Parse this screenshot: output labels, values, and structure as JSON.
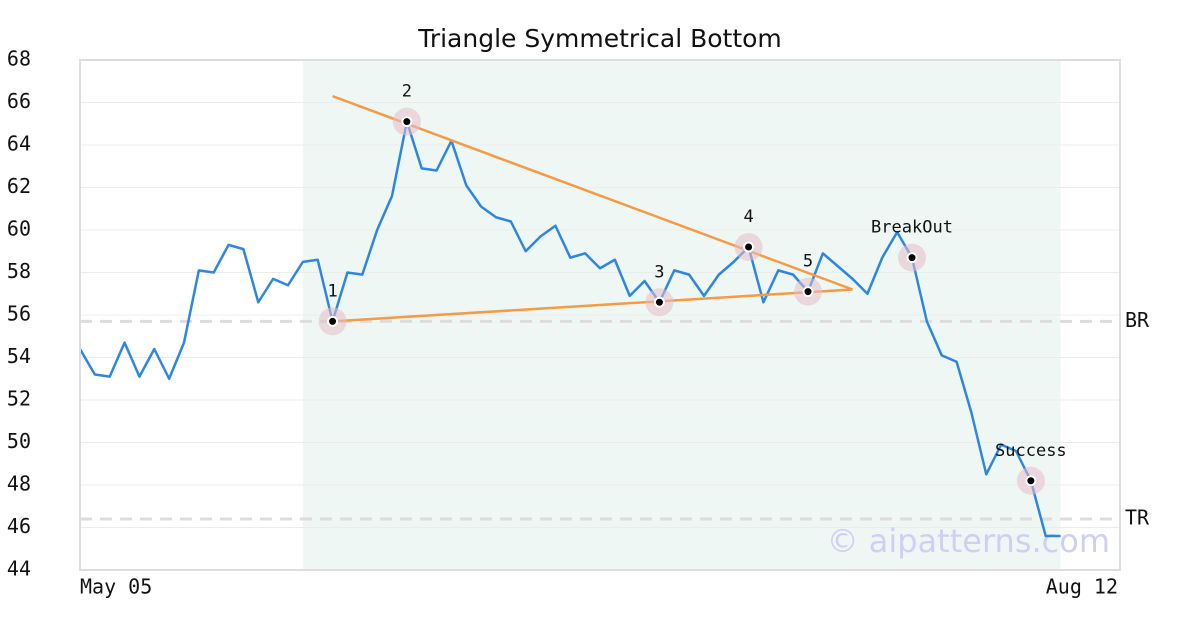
{
  "chart_data": {
    "type": "line",
    "title": "Triangle Symmetrical Bottom",
    "x": [
      0,
      1,
      2,
      3,
      4,
      5,
      6,
      7,
      8,
      9,
      10,
      11,
      12,
      13,
      14,
      15,
      16,
      17,
      18,
      19,
      20,
      21,
      22,
      23,
      24,
      25,
      26,
      27,
      28,
      29,
      30,
      31,
      32,
      33,
      34,
      35,
      36,
      37,
      38,
      39,
      40,
      41,
      42,
      43,
      44,
      45,
      46,
      47,
      48,
      49,
      50,
      51,
      52,
      53,
      54,
      55,
      56,
      57,
      58,
      59,
      60,
      61,
      62,
      63,
      64,
      65,
      66
    ],
    "xlim": [
      0,
      70
    ],
    "xticks": [
      {
        "value": 0,
        "label": "May 05"
      },
      {
        "value": 70,
        "label": "Aug 12"
      }
    ],
    "ylim": [
      44,
      68
    ],
    "yticks": [
      44,
      46,
      48,
      50,
      52,
      54,
      56,
      58,
      60,
      62,
      64,
      66,
      68
    ],
    "grid": true,
    "series": [
      {
        "color": "#2f86e0",
        "values": [
          54.4,
          53.2,
          53.1,
          54.7,
          53.1,
          54.4,
          53.0,
          54.7,
          58.1,
          58.0,
          59.3,
          59.1,
          56.6,
          57.7,
          57.4,
          58.5,
          58.6,
          55.7,
          58.0,
          57.9,
          60.0,
          61.6,
          65.1,
          62.9,
          62.8,
          64.2,
          62.1,
          61.1,
          60.6,
          60.4,
          59.0,
          59.7,
          60.2,
          58.7,
          58.9,
          58.2,
          58.6,
          56.9,
          57.6,
          56.6,
          58.1,
          57.9,
          56.9,
          57.9,
          58.5,
          59.2,
          56.6,
          58.1,
          57.9,
          57.1,
          58.9,
          58.3,
          57.7,
          57.0,
          58.7,
          59.9,
          58.7,
          55.7,
          54.1,
          53.8,
          51.4,
          48.5,
          49.9,
          49.6,
          48.2,
          45.6,
          45.6
        ]
      }
    ],
    "highlight_range": [
      15,
      66
    ],
    "highlight_color": "#eef7f3",
    "trend_lines": [
      {
        "color": "#f59a45",
        "x": [
          17,
          52
        ],
        "y": [
          66.3,
          57.2
        ]
      },
      {
        "color": "#f59a45",
        "x": [
          17,
          52
        ],
        "y": [
          55.7,
          57.2
        ]
      }
    ],
    "levels": [
      {
        "label": "BR",
        "value": 55.7
      },
      {
        "label": "TR",
        "value": 46.4
      }
    ],
    "annotations": [
      {
        "label": "1",
        "x": 17,
        "y": 55.7
      },
      {
        "label": "2",
        "x": 22,
        "y": 65.1
      },
      {
        "label": "3",
        "x": 39,
        "y": 56.6
      },
      {
        "label": "4",
        "x": 45,
        "y": 59.2
      },
      {
        "label": "5",
        "x": 49,
        "y": 57.1
      },
      {
        "label": "BreakOut",
        "x": 56,
        "y": 58.7
      },
      {
        "label": "Success",
        "x": 64,
        "y": 48.2
      }
    ],
    "watermark": "© aipatterns.com"
  }
}
